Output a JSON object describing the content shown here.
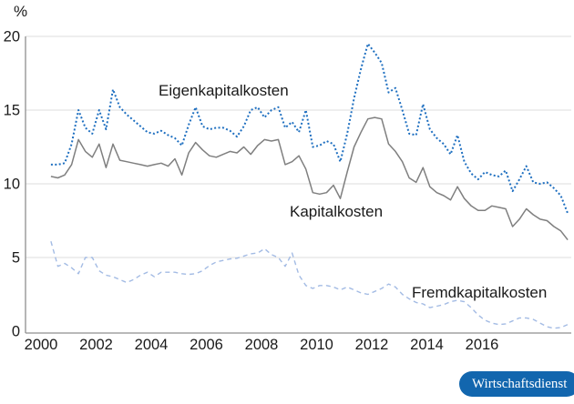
{
  "chart": {
    "y_unit_label": "%",
    "series_labels": {
      "eigen": "Eigenkapitalkosten",
      "kapital": "Kapitalkosten",
      "fremd": "Fremdkapitalkosten"
    }
  },
  "badge": {
    "label": "Wirtschaftsdienst",
    "bg_color": "#1266ae",
    "text_color": "#ffffff"
  },
  "chart_data": {
    "type": "line",
    "title": "",
    "xlabel": "",
    "ylabel": "%",
    "ylim": [
      0,
      20
    ],
    "y_ticks": [
      0,
      5,
      10,
      15,
      20
    ],
    "x_ticks": [
      2000,
      2002,
      2004,
      2006,
      2008,
      2010,
      2012,
      2014,
      2016
    ],
    "x_axis_range": [
      1999.44,
      2019.17
    ],
    "x_start": 2000.36,
    "x_step": 0.25,
    "grid": "horizontal",
    "legend_position": "inline-labels",
    "colors": {
      "grid": "#dcdcdc",
      "axis": "#8f8f8f",
      "text": "#1a1a1a"
    },
    "series": [
      {
        "name": "Eigenkapitalkosten",
        "color": "#1e6fc0",
        "style": "dotted",
        "width": 2,
        "values": [
          11.3,
          11.3,
          11.4,
          12.7,
          15.0,
          13.8,
          13.4,
          15.0,
          13.7,
          16.4,
          15.2,
          14.7,
          14.3,
          13.9,
          13.5,
          13.4,
          13.6,
          13.3,
          13.1,
          12.6,
          14.0,
          15.2,
          13.9,
          13.7,
          13.8,
          13.8,
          13.6,
          13.2,
          13.9,
          15.0,
          15.2,
          14.5,
          15.0,
          15.2,
          13.8,
          14.2,
          13.5,
          15.0,
          12.5,
          12.6,
          12.9,
          12.7,
          11.5,
          13.4,
          15.8,
          17.8,
          19.5,
          18.9,
          18.2,
          16.2,
          16.5,
          15.0,
          13.4,
          13.3,
          15.4,
          13.7,
          13.1,
          12.7,
          12.0,
          13.3,
          11.5,
          10.7,
          10.3,
          10.8,
          10.6,
          10.5,
          10.9,
          9.5,
          10.3,
          11.2,
          10.1,
          10.0,
          10.1,
          9.7,
          9.2,
          8.0
        ]
      },
      {
        "name": "Kapitalkosten",
        "color": "#7f7f7f",
        "style": "solid",
        "width": 1.5,
        "values": [
          10.5,
          10.4,
          10.6,
          11.3,
          13.0,
          12.2,
          11.8,
          12.7,
          11.1,
          12.7,
          11.6,
          11.5,
          11.4,
          11.3,
          11.2,
          11.3,
          11.4,
          11.2,
          11.7,
          10.6,
          12.1,
          12.8,
          12.3,
          11.9,
          11.8,
          12.0,
          12.2,
          12.1,
          12.5,
          12.0,
          12.6,
          13.0,
          12.9,
          13.0,
          11.3,
          11.5,
          11.9,
          11.0,
          9.4,
          9.3,
          9.4,
          9.9,
          9.0,
          10.8,
          12.5,
          13.5,
          14.4,
          14.5,
          14.4,
          12.7,
          12.2,
          11.5,
          10.4,
          10.1,
          11.1,
          9.8,
          9.4,
          9.2,
          8.9,
          9.8,
          9.0,
          8.5,
          8.2,
          8.2,
          8.5,
          8.4,
          8.3,
          7.1,
          7.6,
          8.3,
          7.9,
          7.6,
          7.5,
          7.1,
          6.8,
          6.2
        ]
      },
      {
        "name": "Fremdkapitalkosten",
        "color": "#a3bbe4",
        "style": "dashed",
        "width": 1.4,
        "values": [
          6.1,
          4.4,
          4.6,
          4.3,
          3.9,
          5.0,
          5.0,
          4.1,
          3.8,
          3.7,
          3.5,
          3.3,
          3.5,
          3.8,
          4.0,
          3.7,
          4.0,
          4.0,
          4.0,
          3.9,
          3.85,
          3.9,
          4.1,
          4.45,
          4.7,
          4.8,
          4.9,
          4.95,
          5.1,
          5.25,
          5.3,
          5.6,
          5.2,
          5.0,
          4.4,
          5.3,
          3.8,
          3.1,
          2.9,
          3.1,
          3.1,
          3.0,
          2.8,
          3.0,
          2.8,
          2.6,
          2.5,
          2.7,
          2.9,
          3.2,
          3.0,
          2.5,
          2.2,
          1.95,
          1.85,
          1.6,
          1.7,
          1.8,
          2.0,
          2.1,
          2.0,
          1.6,
          1.1,
          0.75,
          0.55,
          0.45,
          0.5,
          0.7,
          0.9,
          0.9,
          0.8,
          0.55,
          0.3,
          0.2,
          0.25,
          0.45
        ]
      }
    ]
  }
}
